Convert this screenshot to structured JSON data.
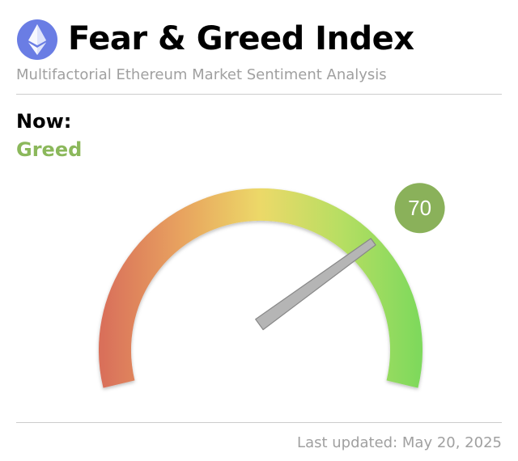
{
  "header": {
    "title": "Fear & Greed Index",
    "subtitle": "Multifactorial Ethereum Market Sentiment Analysis",
    "logo_icon": "ethereum-icon"
  },
  "current": {
    "label": "Now:",
    "sentiment": "Greed",
    "value": 70,
    "value_text": "70",
    "scale_min": 0,
    "scale_max": 100
  },
  "footer": {
    "last_updated": "Last updated: May 20, 2025"
  },
  "colors": {
    "greed": "#8bb85b",
    "badge": "#8ab15a",
    "extreme_fear": "#d9705a",
    "neutral": "#ecd968",
    "extreme_greed": "#7fd95c",
    "needle": "#b5b5b5"
  }
}
